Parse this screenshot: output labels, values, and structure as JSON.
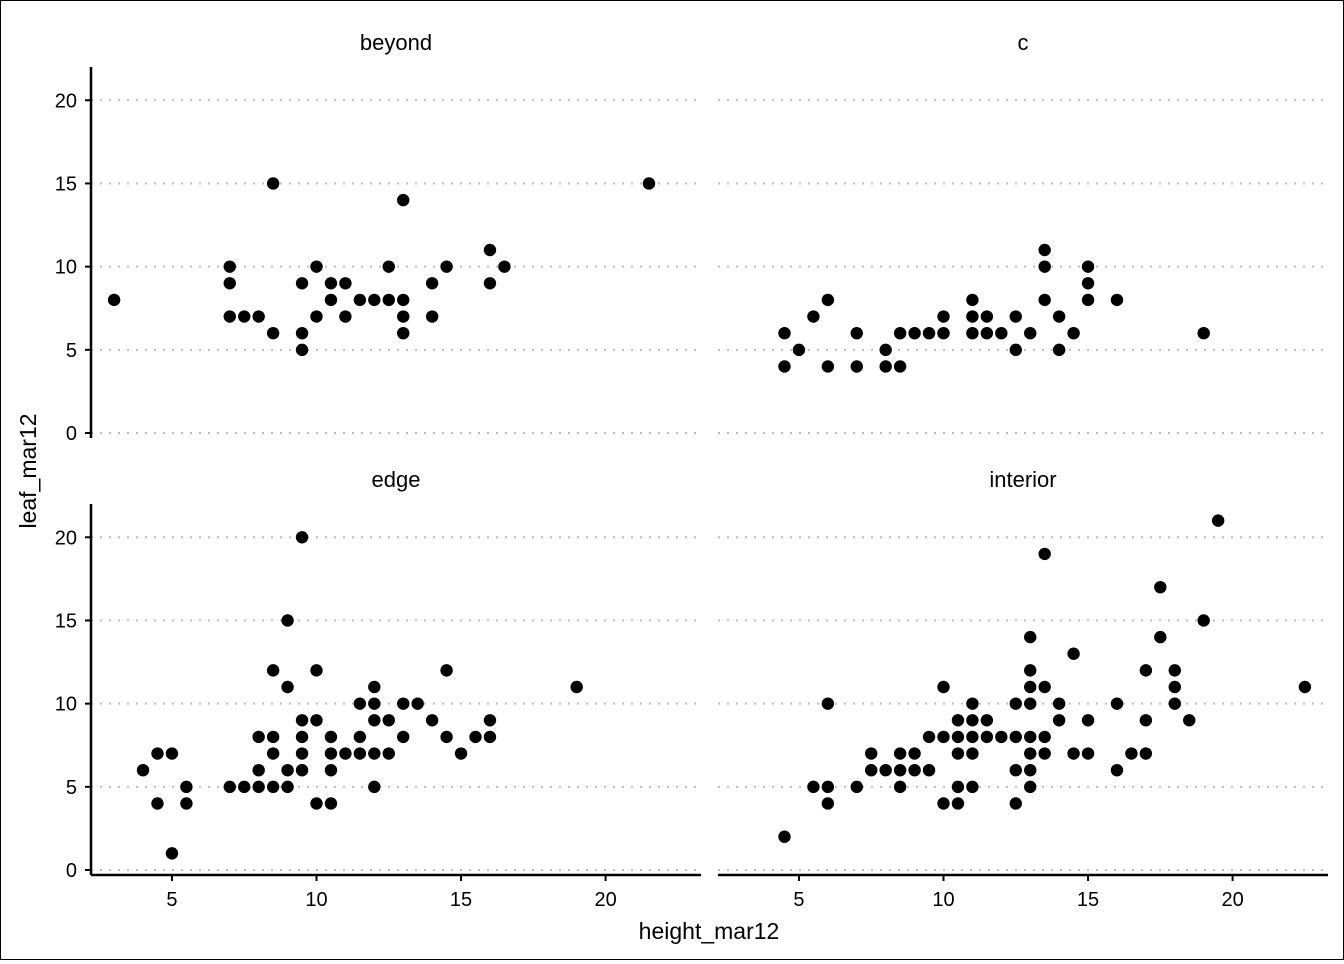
{
  "chart_data": {
    "type": "scatter",
    "xlabel": "height_mar12",
    "ylabel": "leaf_mar12",
    "xlim": [
      2.2,
      23.3
    ],
    "ylim": [
      -0.3,
      22
    ],
    "x_ticks": [
      5,
      10,
      15,
      20
    ],
    "y_ticks": [
      0,
      5,
      10,
      15,
      20
    ],
    "grid": "horizontal dotted",
    "legend": "none",
    "point_color": "#000000",
    "panels": [
      {
        "title": "beyond",
        "points": [
          [
            3,
            8
          ],
          [
            7,
            10
          ],
          [
            7,
            9
          ],
          [
            7,
            7
          ],
          [
            7.5,
            7
          ],
          [
            8,
            7
          ],
          [
            8.5,
            15
          ],
          [
            8.5,
            6
          ],
          [
            9.5,
            9
          ],
          [
            9.5,
            6
          ],
          [
            9.5,
            5
          ],
          [
            10,
            10
          ],
          [
            10,
            7
          ],
          [
            10.5,
            9
          ],
          [
            10.5,
            8
          ],
          [
            11,
            9
          ],
          [
            11,
            7
          ],
          [
            11.5,
            8
          ],
          [
            12,
            8
          ],
          [
            12.5,
            10
          ],
          [
            12.5,
            8
          ],
          [
            13,
            14
          ],
          [
            13,
            8
          ],
          [
            13,
            7
          ],
          [
            13,
            6
          ],
          [
            14,
            9
          ],
          [
            14,
            7
          ],
          [
            14.5,
            10
          ],
          [
            16,
            11
          ],
          [
            16,
            9
          ],
          [
            16.5,
            10
          ],
          [
            21.5,
            15
          ]
        ]
      },
      {
        "title": "c",
        "points": [
          [
            4.5,
            6
          ],
          [
            4.5,
            4
          ],
          [
            5,
            5
          ],
          [
            5.5,
            7
          ],
          [
            6,
            8
          ],
          [
            6,
            4
          ],
          [
            7,
            6
          ],
          [
            7,
            4
          ],
          [
            8,
            5
          ],
          [
            8,
            4
          ],
          [
            8.5,
            6
          ],
          [
            8.5,
            4
          ],
          [
            9,
            6
          ],
          [
            9.5,
            6
          ],
          [
            10,
            7
          ],
          [
            10,
            6
          ],
          [
            11,
            8
          ],
          [
            11,
            7
          ],
          [
            11,
            6
          ],
          [
            11.5,
            7
          ],
          [
            11.5,
            6
          ],
          [
            12,
            6
          ],
          [
            12.5,
            7
          ],
          [
            12.5,
            5
          ],
          [
            13,
            6
          ],
          [
            13.5,
            11
          ],
          [
            13.5,
            10
          ],
          [
            13.5,
            8
          ],
          [
            14,
            7
          ],
          [
            14,
            5
          ],
          [
            14.5,
            6
          ],
          [
            15,
            10
          ],
          [
            15,
            9
          ],
          [
            15,
            8
          ],
          [
            16,
            8
          ],
          [
            19,
            6
          ]
        ]
      },
      {
        "title": "edge",
        "points": [
          [
            4,
            6
          ],
          [
            4.5,
            7
          ],
          [
            4.5,
            4
          ],
          [
            5,
            7
          ],
          [
            5,
            1
          ],
          [
            5.5,
            5
          ],
          [
            5.5,
            4
          ],
          [
            7,
            5
          ],
          [
            7.5,
            5
          ],
          [
            8,
            8
          ],
          [
            8,
            6
          ],
          [
            8,
            5
          ],
          [
            8.5,
            12
          ],
          [
            8.5,
            8
          ],
          [
            8.5,
            7
          ],
          [
            8.5,
            5
          ],
          [
            9,
            15
          ],
          [
            9,
            11
          ],
          [
            9,
            6
          ],
          [
            9,
            5
          ],
          [
            9.5,
            20
          ],
          [
            9.5,
            9
          ],
          [
            9.5,
            8
          ],
          [
            9.5,
            7
          ],
          [
            9.5,
            6
          ],
          [
            10,
            12
          ],
          [
            10,
            9
          ],
          [
            10,
            4
          ],
          [
            10.5,
            8
          ],
          [
            10.5,
            7
          ],
          [
            10.5,
            6
          ],
          [
            10.5,
            4
          ],
          [
            11,
            7
          ],
          [
            11.5,
            10
          ],
          [
            11.5,
            8
          ],
          [
            11.5,
            7
          ],
          [
            12,
            11
          ],
          [
            12,
            10
          ],
          [
            12,
            9
          ],
          [
            12,
            7
          ],
          [
            12,
            5
          ],
          [
            12.5,
            9
          ],
          [
            12.5,
            7
          ],
          [
            13,
            10
          ],
          [
            13,
            8
          ],
          [
            13.5,
            10
          ],
          [
            14,
            9
          ],
          [
            14.5,
            12
          ],
          [
            14.5,
            8
          ],
          [
            15,
            7
          ],
          [
            15.5,
            8
          ],
          [
            16,
            9
          ],
          [
            16,
            8
          ],
          [
            19,
            11
          ]
        ]
      },
      {
        "title": "interior",
        "points": [
          [
            4.5,
            2
          ],
          [
            5.5,
            5
          ],
          [
            6,
            10
          ],
          [
            6,
            5
          ],
          [
            6,
            4
          ],
          [
            7,
            5
          ],
          [
            7.5,
            7
          ],
          [
            7.5,
            6
          ],
          [
            8,
            6
          ],
          [
            8.5,
            7
          ],
          [
            8.5,
            6
          ],
          [
            8.5,
            5
          ],
          [
            9,
            7
          ],
          [
            9,
            6
          ],
          [
            9.5,
            8
          ],
          [
            9.5,
            6
          ],
          [
            10,
            11
          ],
          [
            10,
            8
          ],
          [
            10,
            4
          ],
          [
            10.5,
            9
          ],
          [
            10.5,
            8
          ],
          [
            10.5,
            7
          ],
          [
            10.5,
            5
          ],
          [
            10.5,
            4
          ],
          [
            11,
            10
          ],
          [
            11,
            9
          ],
          [
            11,
            8
          ],
          [
            11,
            7
          ],
          [
            11,
            5
          ],
          [
            11.5,
            9
          ],
          [
            11.5,
            8
          ],
          [
            12,
            8
          ],
          [
            12.5,
            10
          ],
          [
            12.5,
            8
          ],
          [
            12.5,
            6
          ],
          [
            12.5,
            4
          ],
          [
            13,
            14
          ],
          [
            13,
            12
          ],
          [
            13,
            11
          ],
          [
            13,
            10
          ],
          [
            13,
            8
          ],
          [
            13,
            7
          ],
          [
            13,
            6
          ],
          [
            13,
            5
          ],
          [
            13.5,
            19
          ],
          [
            13.5,
            11
          ],
          [
            13.5,
            8
          ],
          [
            13.5,
            7
          ],
          [
            14,
            10
          ],
          [
            14,
            9
          ],
          [
            14.5,
            13
          ],
          [
            14.5,
            7
          ],
          [
            15,
            9
          ],
          [
            15,
            7
          ],
          [
            16,
            10
          ],
          [
            16,
            6
          ],
          [
            16.5,
            7
          ],
          [
            17,
            9
          ],
          [
            17,
            7
          ],
          [
            17,
            12
          ],
          [
            17.5,
            17
          ],
          [
            17.5,
            14
          ],
          [
            18,
            12
          ],
          [
            18,
            11
          ],
          [
            18,
            10
          ],
          [
            18.5,
            9
          ],
          [
            19,
            15
          ],
          [
            19.5,
            21
          ],
          [
            22.5,
            11
          ]
        ]
      }
    ]
  }
}
